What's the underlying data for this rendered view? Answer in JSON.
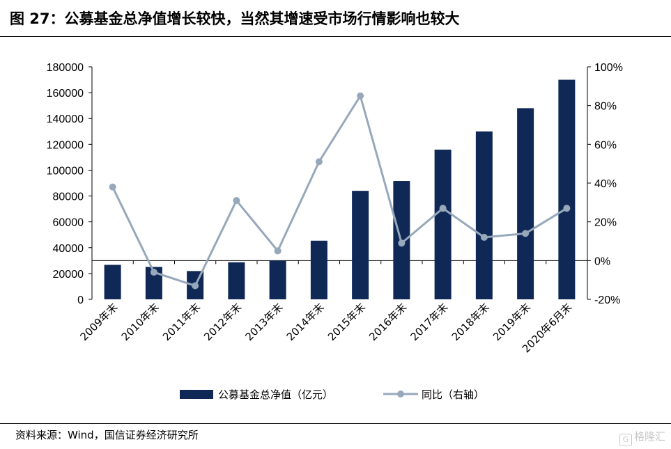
{
  "header": {
    "title": "图 27：公募基金总净值增长较快，当然其增速受市场行情影响也较大"
  },
  "footer": {
    "source": "资料来源：Wind，国信证券经济研究所",
    "watermark": "格隆汇"
  },
  "colors": {
    "bar": "#0f2856",
    "line": "#96a8ba",
    "axis": "#000000"
  },
  "chart_data": {
    "type": "bar",
    "title": "",
    "categories": [
      "2009年末",
      "2010年末",
      "2011年末",
      "2012年末",
      "2013年末",
      "2014年末",
      "2015年末",
      "2016年末",
      "2017年末",
      "2018年末",
      "2019年末",
      "2020年6月末"
    ],
    "series": [
      {
        "name": "公募基金总净值（亿元）",
        "type": "bar",
        "axis": "left",
        "values": [
          26700,
          25100,
          21900,
          28700,
          30000,
          45400,
          84000,
          91600,
          115900,
          130000,
          148000,
          170000
        ]
      },
      {
        "name": "同比（右轴）",
        "type": "line",
        "axis": "right",
        "values": [
          38,
          -6,
          -13,
          31,
          5,
          51,
          85,
          9,
          27,
          12,
          14,
          27
        ]
      }
    ],
    "y_left": {
      "min": 0,
      "max": 180000,
      "step": 20000,
      "ticks": [
        "0",
        "20000",
        "40000",
        "60000",
        "80000",
        "100000",
        "120000",
        "140000",
        "160000",
        "180000"
      ]
    },
    "y_right": {
      "min": -20,
      "max": 100,
      "step": 20,
      "ticks": [
        "-20%",
        "0%",
        "20%",
        "40%",
        "60%",
        "80%",
        "100%"
      ]
    },
    "grid": false,
    "legend_position": "bottom"
  }
}
